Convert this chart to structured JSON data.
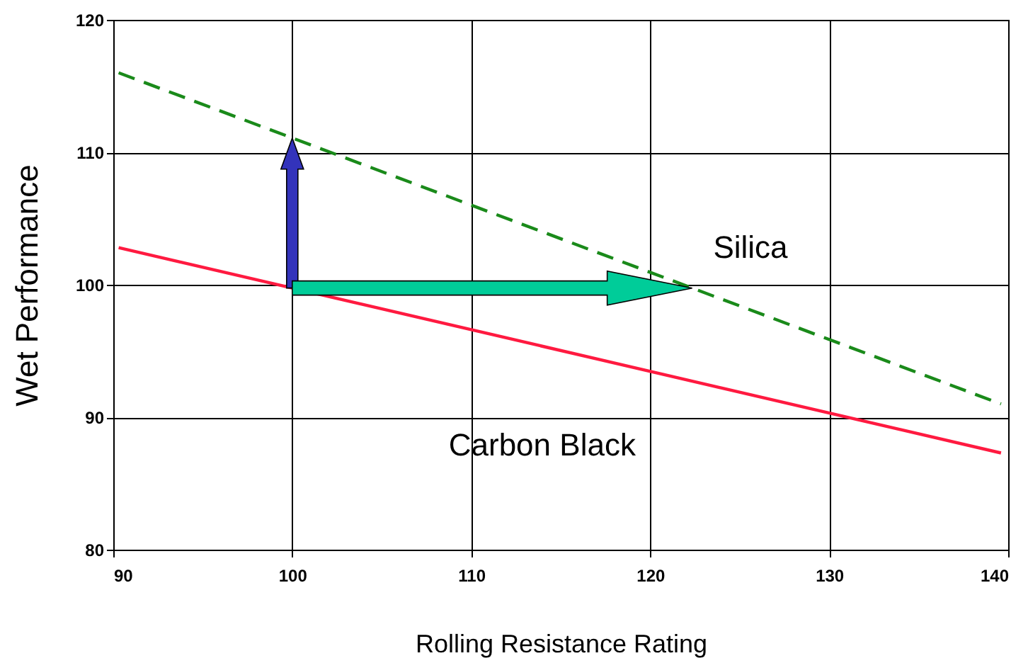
{
  "chart_data": {
    "type": "line",
    "xlabel": "Rolling Resistance Rating",
    "ylabel": "Wet Performance",
    "x": [
      90.3,
      139.6
    ],
    "xlim": [
      90,
      140
    ],
    "xticks": [
      90,
      100,
      110,
      120,
      130,
      140
    ],
    "ylim": [
      80,
      120
    ],
    "yticks": [
      80,
      90,
      100,
      110,
      120
    ],
    "grid": true,
    "series": [
      {
        "name": "Silica",
        "color": "#1a8a1a",
        "line_style": "dashed",
        "values": [
          116,
          91
        ]
      },
      {
        "name": "Carbon Black",
        "color": "#ff1a40",
        "line_style": "solid",
        "values": [
          102.8,
          87.3
        ]
      }
    ]
  }
}
